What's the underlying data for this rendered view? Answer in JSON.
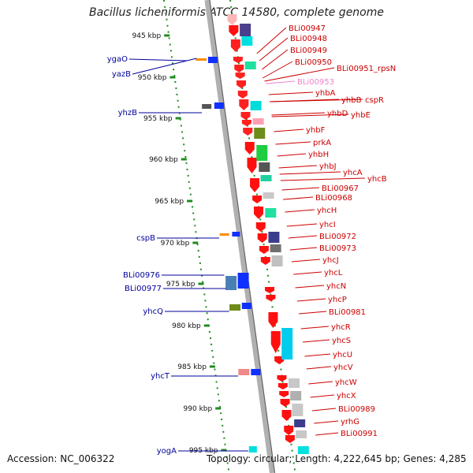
{
  "title": "Bacillus licheniformis ATCC 14580, complete genome",
  "footer": {
    "accession": "Accession: NC_006322",
    "summary": "Topology: circular; Length: 4,222,645 bp; Genes: 4,285"
  },
  "ticks": [
    "945 kbp",
    "950 kbp",
    "955 kbp",
    "960 kbp",
    "965 kbp",
    "970 kbp",
    "975 kbp",
    "980 kbp",
    "985 kbp",
    "990 kbp",
    "995 kbp"
  ],
  "left_labels": [
    "ygaO",
    "yazB",
    "yhzB",
    "cspB",
    "BLi00976",
    "BLi00977",
    "yhcQ",
    "yhcT",
    "yogA"
  ],
  "right_labels": [
    "BLi00947",
    "BLi00948",
    "BLi00949",
    "BLi00950",
    "BLi00951_rpsN",
    "BLi00953",
    "yhbA",
    "yhbB",
    "cspR",
    "yhbD",
    "yhbE",
    "yhbF",
    "prkA",
    "yhbH",
    "yhbJ",
    "yhcA",
    "yhcB",
    "BLi00967",
    "BLi00968",
    "yhcH",
    "yhcI",
    "BLi00972",
    "BLi00973",
    "yhcJ",
    "yhcL",
    "yhcN",
    "yhcP",
    "BLi00981",
    "yhcR",
    "yhcS",
    "yhcU",
    "yhcV",
    "yhcW",
    "yhcX",
    "BLi00989",
    "yrhG",
    "BLi00991"
  ],
  "colors": {
    "reverse_label": "#cc0000",
    "forward_label": "#00009c",
    "pink_label": "#ee82c8",
    "tick": "#228b22",
    "axis": "#999999"
  }
}
